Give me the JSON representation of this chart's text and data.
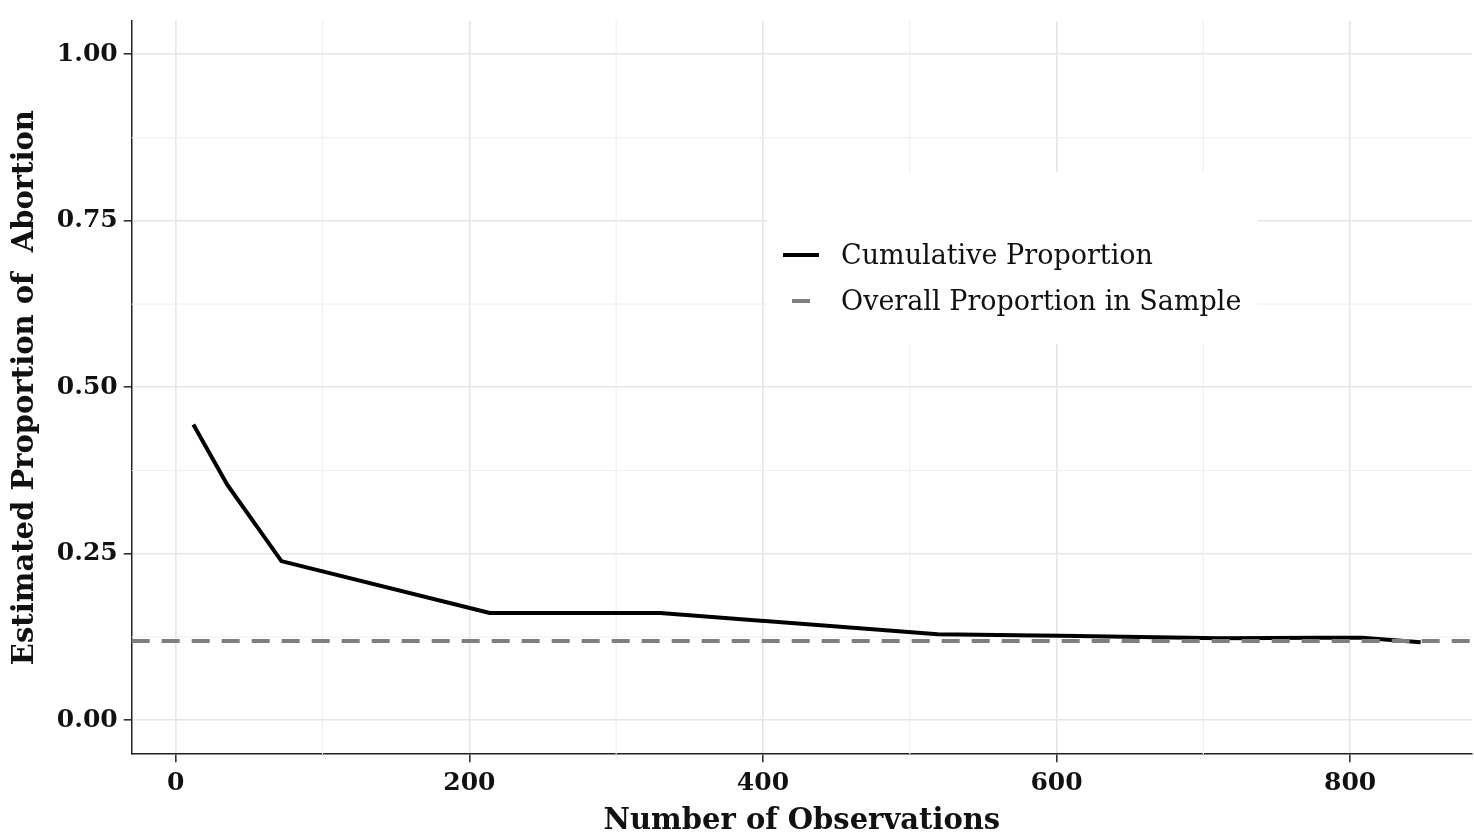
{
  "chart_data": {
    "type": "line",
    "xlabel": "Number of Observations",
    "ylabel": "Estimated Proportion of  Abortion",
    "x": [
      12,
      35,
      72,
      214,
      330,
      519,
      603,
      711,
      777,
      808,
      848
    ],
    "series": [
      {
        "name": "Cumulative Proportion",
        "color": "#000000",
        "values": [
          0.444,
          0.354,
          0.239,
          0.161,
          0.161,
          0.129,
          0.127,
          0.123,
          0.124,
          0.124,
          0.117
        ]
      }
    ],
    "ref_lines": [
      {
        "axis": "y",
        "value": 0.119,
        "label": "Overall Proportion in Sample",
        "color": "#7f7f7f",
        "line_style": "dashed"
      }
    ],
    "xlim": [
      -30,
      883
    ],
    "xticks": [
      0,
      200,
      400,
      600,
      800
    ],
    "ylim": [
      -0.051,
      1.05
    ],
    "yticks": [
      {
        "value": 0,
        "label": "0.00"
      },
      {
        "value": 0.25,
        "label": "0.25"
      },
      {
        "value": 0.5,
        "label": "0.50"
      },
      {
        "value": 0.75,
        "label": "0.75"
      },
      {
        "value": 1,
        "label": "1.00"
      }
    ],
    "grid": true,
    "legend": "right",
    "marker": "none",
    "line_style": "solid"
  }
}
